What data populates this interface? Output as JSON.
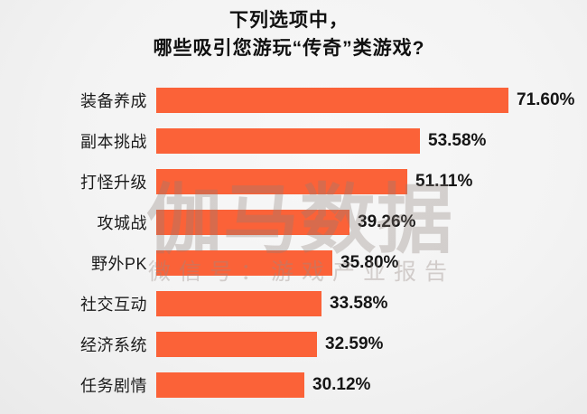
{
  "title": {
    "line1": "下列选项中，",
    "line2": "哪些吸引您游玩“传奇”类游戏?"
  },
  "watermark": {
    "brand": "伽马数据",
    "wechat": "微信号：游戏产业报告"
  },
  "colors": {
    "bar": "#FB6238",
    "label_text": "#1B1B1B",
    "value_text": "#151515",
    "title_text": "#111111",
    "background": "#F3F3F3",
    "watermark_main": "rgba(141, 128, 120, 0.32)",
    "watermark_sub": "rgba(152, 140, 133, 0.38)"
  },
  "chart_data": {
    "type": "bar",
    "orientation": "horizontal",
    "title": "下列选项中，哪些吸引您游玩“传奇”类游戏?",
    "categories": [
      "装备养成",
      "副本挑战",
      "打怪升级",
      "攻城战",
      "野外PK",
      "社交互动",
      "经济系统",
      "任务剧情"
    ],
    "values": [
      71.6,
      53.58,
      51.11,
      39.26,
      35.8,
      33.58,
      32.59,
      30.12
    ],
    "value_labels": [
      "71.60%",
      "53.58%",
      "51.11%",
      "39.26%",
      "35.80%",
      "33.58%",
      "32.59%",
      "30.12%"
    ],
    "unit": "%",
    "xlim": [
      0,
      80
    ],
    "xlabel": "",
    "ylabel": "",
    "grid": false,
    "legend": false,
    "value_labels_position": "right-of-bar",
    "sort": "descending"
  }
}
